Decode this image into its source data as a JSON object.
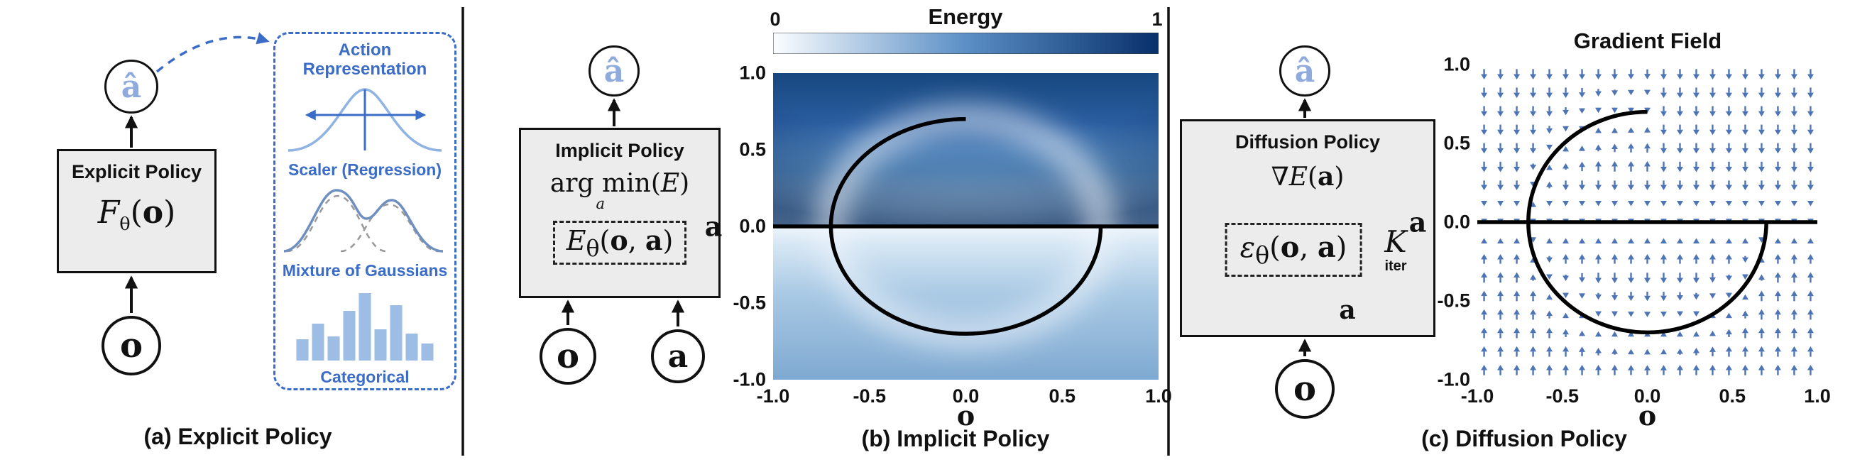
{
  "colors": {
    "accent_blue": "#3b6cc7",
    "light_blue": "#8fb3e2",
    "ahat_blue": "#8faadc",
    "bar_blue": "#9dbde4",
    "arrow_blue": "#4d74b5",
    "box_gray": "#ececec"
  },
  "panels": {
    "a": {
      "caption": "(a) Explicit Policy",
      "node_ahat": "â",
      "node_o": "o",
      "box_title": "Explicit Policy",
      "formula": {
        "name": "F",
        "sub": "θ",
        "open": "(",
        "arg": "o",
        "close": ")"
      },
      "action_rep": {
        "title": "Action Representation",
        "scaler_label": "Scaler (Regression)",
        "mixture_label": "Mixture of Gaussians",
        "categorical_label": "Categorical",
        "histogram": [
          30,
          52,
          34,
          70,
          95,
          44,
          78,
          38,
          24
        ]
      }
    },
    "b": {
      "caption": "(b) Implicit Policy",
      "node_ahat": "â",
      "node_o": "o",
      "node_a": "a",
      "box_title": "Implicit Policy",
      "argmin": {
        "top": "arg min",
        "under": "a",
        "open": "(",
        "E": "E",
        "close": ")"
      },
      "energy_formula": {
        "name": "E",
        "sub": "θ",
        "open": "(",
        "arg1": "o",
        "sep": ", ",
        "arg2": "a",
        "close": ")"
      }
    },
    "c": {
      "caption": "(c) Diffusion Policy",
      "node_ahat": "â",
      "node_o": "o",
      "box_title": "Diffusion Policy",
      "grad_formula": {
        "nabla": "∇",
        "name": "E",
        "open": "(",
        "arg": "a",
        "close": ")"
      },
      "eps_formula": {
        "name": "ε",
        "sub": "θ",
        "open": "(",
        "arg1": "o",
        "sep": ", ",
        "arg2": "a",
        "close": ")"
      },
      "k_label": "K",
      "iter_label": "iter",
      "a_feedback": "a"
    }
  },
  "chart_data": [
    {
      "type": "heatmap",
      "title": "Energy",
      "xlabel": "o",
      "ylabel": "a",
      "xlim": [
        -1.0,
        1.0
      ],
      "ylim": [
        -1.0,
        1.0
      ],
      "xticks": [
        "-1.0",
        "-0.5",
        "0.0",
        "0.5",
        "1.0"
      ],
      "yticks": [
        "1.0",
        "0.5",
        "0.0",
        "-0.5",
        "-1.0"
      ],
      "colorbar": {
        "min_label": "0",
        "max_label": "1"
      },
      "colormap": "Blues (white = low energy, dark navy = high energy)",
      "overlay": "action manifold: horizontal line a=0 across full width plus circle arc of radius 0.7 from (0,0.7) counterclockwise through (-0.7,0) and (0,-0.7) to (0.7,0)"
    },
    {
      "type": "quiver",
      "title": "Gradient Field",
      "xlabel": "o",
      "ylabel": "a",
      "xlim": [
        -1.0,
        1.0
      ],
      "ylim": [
        -1.0,
        1.0
      ],
      "xticks": [
        "-1.0",
        "-0.5",
        "0.0",
        "0.5",
        "1.0"
      ],
      "yticks": [
        "1.0",
        "0.5",
        "0.0",
        "-0.5",
        "-1.0"
      ],
      "grid": {
        "cols": 21,
        "rows": 17
      },
      "circle_radius": 0.7,
      "description": "vertical blue arrows pointing toward the action manifold (line a=0 and circle radius 0.7)",
      "overlay": "action manifold: horizontal line a=0 plus circle arc radius 0.7 (missing top-right quadrant)"
    }
  ]
}
